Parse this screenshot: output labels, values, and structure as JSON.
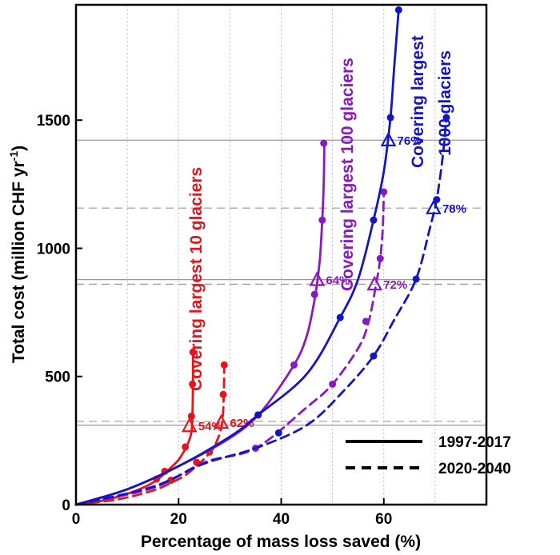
{
  "chart_data": {
    "type": "line",
    "xlabel": "Percentage of mass loss saved (%)",
    "ylabel": "Total cost (million CHF yr",
    "ylabel_sup": "-1",
    "ylabel_close": ")",
    "xlim": [
      0,
      80
    ],
    "ylim": [
      0,
      1950
    ],
    "xticks": [
      0,
      20,
      40,
      60
    ],
    "yticks": [
      0,
      500,
      1000,
      1500
    ],
    "xgrid_dotted": [
      10,
      20,
      30,
      40,
      50,
      60,
      70
    ],
    "colors": {
      "red": "#e8141b",
      "purple": "#8a18c4",
      "blue": "#1414c8"
    },
    "legend": {
      "placement": "bottom-right",
      "entries": [
        {
          "label": "1997-2017",
          "style": "solid"
        },
        {
          "label": "2020-2040",
          "style": "dashed"
        }
      ]
    },
    "series": [
      {
        "group": "10",
        "color": "red",
        "style": "solid",
        "curve": [
          [
            0,
            0
          ],
          [
            5,
            15
          ],
          [
            10,
            42
          ],
          [
            14,
            75
          ],
          [
            16,
            100
          ],
          [
            18,
            135
          ],
          [
            20,
            175
          ],
          [
            21.5,
            225
          ],
          [
            22.3,
            265
          ],
          [
            22.6,
            300
          ],
          [
            22.7,
            350
          ],
          [
            22.8,
            470
          ],
          [
            22.8,
            595
          ]
        ],
        "points": [
          [
            15.7,
            100
          ],
          [
            17.3,
            130
          ],
          [
            21.3,
            225
          ],
          [
            22.5,
            345
          ],
          [
            22.7,
            470
          ],
          [
            22.8,
            595
          ]
        ],
        "marker": [
          22.1,
          305
        ],
        "marker_label": "54%"
      },
      {
        "group": "10",
        "color": "red",
        "style": "dashed",
        "curve": [
          [
            0,
            0
          ],
          [
            8,
            20
          ],
          [
            15,
            55
          ],
          [
            19,
            90
          ],
          [
            22,
            125
          ],
          [
            26,
            200
          ],
          [
            27.5,
            250
          ],
          [
            28.5,
            320
          ],
          [
            28.8,
            430
          ],
          [
            28.9,
            545
          ]
        ],
        "points": [
          [
            18.5,
            95
          ],
          [
            23.5,
            165
          ],
          [
            26.0,
            205
          ],
          [
            28.7,
            430
          ],
          [
            28.9,
            545
          ]
        ],
        "marker": [
          28.3,
          318
        ],
        "marker_label": "62%"
      },
      {
        "group": "100",
        "color": "purple",
        "style": "solid",
        "curve": [
          [
            0,
            0
          ],
          [
            10,
            60
          ],
          [
            20,
            150
          ],
          [
            30,
            260
          ],
          [
            36,
            360
          ],
          [
            42.5,
            545
          ],
          [
            45,
            660
          ],
          [
            46.5,
            800
          ],
          [
            47.5,
            950
          ],
          [
            48,
            1110
          ],
          [
            48.3,
            1260
          ],
          [
            48.4,
            1410
          ]
        ],
        "points": [
          [
            35.5,
            350
          ],
          [
            42.5,
            545
          ],
          [
            46.5,
            820
          ],
          [
            48.0,
            1110
          ],
          [
            48.3,
            1410
          ]
        ],
        "marker": [
          47.0,
          875
        ],
        "marker_label": "64%"
      },
      {
        "group": "100",
        "color": "purple",
        "style": "dashed",
        "curve": [
          [
            0,
            0
          ],
          [
            15,
            65
          ],
          [
            25,
            165
          ],
          [
            35,
            220
          ],
          [
            45,
            380
          ],
          [
            50,
            470
          ],
          [
            55,
            610
          ],
          [
            57,
            710
          ],
          [
            58.5,
            860
          ],
          [
            59.3,
            960
          ],
          [
            59.8,
            1080
          ],
          [
            60,
            1220
          ]
        ],
        "points": [
          [
            35.0,
            220
          ],
          [
            50.0,
            470
          ],
          [
            56.5,
            715
          ],
          [
            59.3,
            960
          ],
          [
            60.0,
            1220
          ]
        ],
        "marker": [
          58.2,
          858
        ],
        "marker_label": "72%"
      },
      {
        "group": "1000",
        "color": "blue",
        "style": "solid",
        "curve": [
          [
            0,
            0
          ],
          [
            10,
            60
          ],
          [
            20,
            150
          ],
          [
            30,
            265
          ],
          [
            35.5,
            350
          ],
          [
            45,
            510
          ],
          [
            51.5,
            730
          ],
          [
            55,
            880
          ],
          [
            58,
            1110
          ],
          [
            60,
            1300
          ],
          [
            61.3,
            1510
          ],
          [
            62,
            1700
          ],
          [
            62.9,
            1930
          ]
        ],
        "points": [
          [
            35.5,
            350
          ],
          [
            51.5,
            730
          ],
          [
            58.0,
            1110
          ],
          [
            61.3,
            1510
          ],
          [
            62.9,
            1930
          ]
        ],
        "marker": [
          60.9,
          1420
        ],
        "marker_label": "76%"
      },
      {
        "group": "1000",
        "color": "blue",
        "style": "dashed",
        "curve": [
          [
            0,
            0
          ],
          [
            15,
            70
          ],
          [
            25,
            160
          ],
          [
            35,
            220
          ],
          [
            45,
            310
          ],
          [
            52,
            440
          ],
          [
            58,
            580
          ],
          [
            62,
            720
          ],
          [
            66.3,
            880
          ],
          [
            69,
            1080
          ],
          [
            70.3,
            1190
          ],
          [
            71.5,
            1360
          ],
          [
            72.2,
            1510
          ]
        ],
        "points": [
          [
            39.5,
            280
          ],
          [
            58.0,
            580
          ],
          [
            66.3,
            880
          ],
          [
            70.3,
            1190
          ],
          [
            72.2,
            1510
          ]
        ],
        "marker": [
          69.7,
          1155
        ],
        "marker_label": "78%"
      }
    ],
    "hlines": [
      {
        "y": 1422,
        "style": "solid"
      },
      {
        "y": 1157,
        "style": "dashed"
      },
      {
        "y": 878,
        "style": "solid"
      },
      {
        "y": 860,
        "style": "dashed"
      },
      {
        "y": 325,
        "style": "dashed"
      },
      {
        "y": 310,
        "style": "solid"
      }
    ],
    "annotations": [
      {
        "text": "Covering largest 10 glaciers",
        "color": "red"
      },
      {
        "text": "Covering largest 100 glaciers",
        "color": "purple"
      },
      {
        "text": "Covering largest",
        "color": "blue"
      },
      {
        "text": "1000 glaciers",
        "color": "blue"
      }
    ]
  }
}
